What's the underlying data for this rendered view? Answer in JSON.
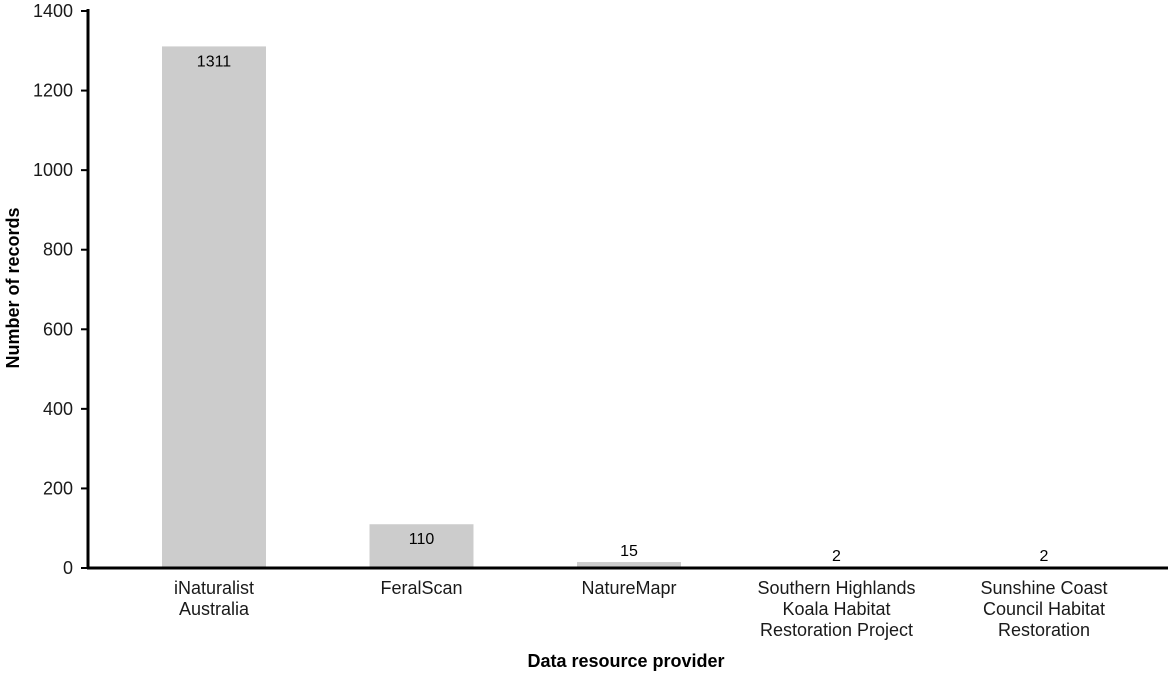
{
  "chart_data": {
    "type": "bar",
    "title": "",
    "xlabel": "Data resource provider",
    "ylabel": "Number of records",
    "ylim": [
      0,
      1400
    ],
    "yticks": [
      0,
      200,
      400,
      600,
      800,
      1000,
      1200,
      1400
    ],
    "grid": false,
    "categories": [
      "iNaturalist Australia",
      "FeralScan",
      "NatureMapr",
      "Southern Highlands Koala Habitat Restoration Project",
      "Sunshine Coast Council Habitat Restoration"
    ],
    "category_label_lines": [
      [
        "iNaturalist",
        "Australia"
      ],
      [
        "FeralScan"
      ],
      [
        "NatureMapr"
      ],
      [
        "Southern Highlands",
        "Koala Habitat",
        "Restoration Project"
      ],
      [
        "Sunshine Coast",
        "Council Habitat",
        "Restoration"
      ]
    ],
    "values": [
      1311,
      110,
      15,
      2,
      2
    ],
    "data_labels": [
      "1311",
      "110",
      "15",
      "2",
      "2"
    ],
    "bar_color": "#cccccc",
    "axis_color": "#000000"
  }
}
